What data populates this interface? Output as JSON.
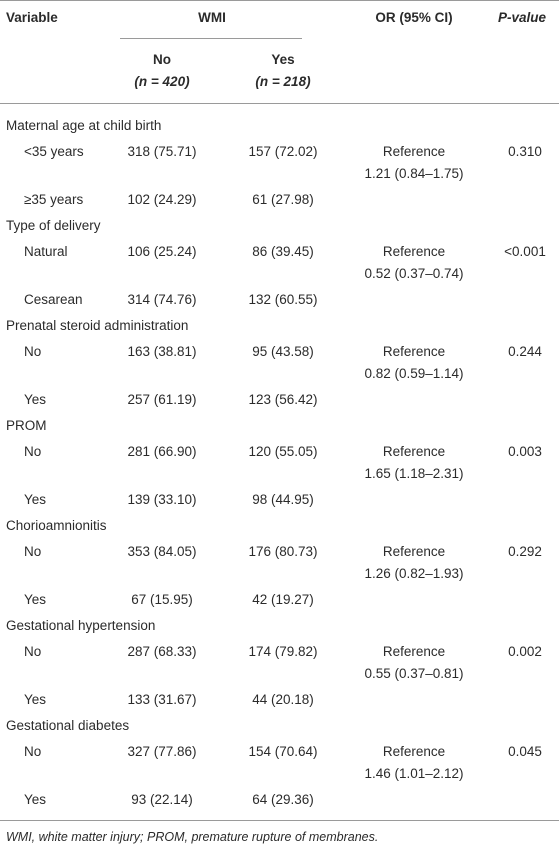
{
  "header": {
    "variable": "Variable",
    "wmi": "WMI",
    "or": "OR (95% CI)",
    "p": "P-value",
    "no": "No",
    "no_n": "(n = 420)",
    "yes": "Yes",
    "yes_n": "(n = 218)"
  },
  "groups": [
    {
      "title": "Maternal age at child birth",
      "or_ref": "Reference",
      "or_value": "1.21 (0.84–1.75)",
      "p": "0.310",
      "rows": [
        {
          "label": "<35 years",
          "no": "318 (75.71)",
          "yes": "157 (72.02)"
        },
        {
          "label": "≥35 years",
          "no": "102 (24.29)",
          "yes": "61 (27.98)"
        }
      ]
    },
    {
      "title": "Type of delivery",
      "or_ref": "Reference",
      "or_value": "0.52 (0.37–0.74)",
      "p": "<0.001",
      "rows": [
        {
          "label": "Natural",
          "no": "106 (25.24)",
          "yes": "86 (39.45)"
        },
        {
          "label": "Cesarean",
          "no": "314 (74.76)",
          "yes": "132 (60.55)"
        }
      ]
    },
    {
      "title": "Prenatal steroid administration",
      "or_ref": "Reference",
      "or_value": "0.82 (0.59–1.14)",
      "p": "0.244",
      "rows": [
        {
          "label": "No",
          "no": "163 (38.81)",
          "yes": "95 (43.58)"
        },
        {
          "label": "Yes",
          "no": "257 (61.19)",
          "yes": "123 (56.42)"
        }
      ]
    },
    {
      "title": "PROM",
      "or_ref": "Reference",
      "or_value": "1.65 (1.18–2.31)",
      "p": "0.003",
      "rows": [
        {
          "label": "No",
          "no": "281 (66.90)",
          "yes": "120 (55.05)"
        },
        {
          "label": "Yes",
          "no": "139 (33.10)",
          "yes": "98 (44.95)"
        }
      ]
    },
    {
      "title": "Chorioamnionitis",
      "or_ref": "Reference",
      "or_value": "1.26 (0.82–1.93)",
      "p": "0.292",
      "rows": [
        {
          "label": "No",
          "no": "353 (84.05)",
          "yes": "176 (80.73)"
        },
        {
          "label": "Yes",
          "no": "67 (15.95)",
          "yes": "42 (19.27)"
        }
      ]
    },
    {
      "title": "Gestational hypertension",
      "or_ref": "Reference",
      "or_value": "0.55 (0.37–0.81)",
      "p": "0.002",
      "rows": [
        {
          "label": "No",
          "no": "287 (68.33)",
          "yes": "174 (79.82)"
        },
        {
          "label": "Yes",
          "no": "133 (31.67)",
          "yes": "44 (20.18)"
        }
      ]
    },
    {
      "title": "Gestational diabetes",
      "or_ref": "Reference",
      "or_value": "1.46 (1.01–2.12)",
      "p": "0.045",
      "rows": [
        {
          "label": "No",
          "no": "327 (77.86)",
          "yes": "154 (70.64)"
        },
        {
          "label": "Yes",
          "no": "93 (22.14)",
          "yes": "64 (29.36)"
        }
      ]
    }
  ],
  "footnote": "WMI, white matter injury; PROM, premature rupture of membranes."
}
